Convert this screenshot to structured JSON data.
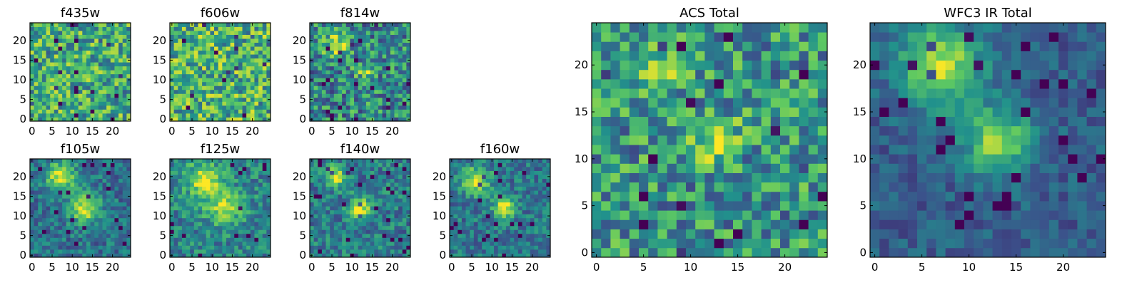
{
  "figure": {
    "panel_titles": [
      "f435w",
      "f606w",
      "f814w",
      "f105w",
      "f125w",
      "f140w",
      "f160w",
      "ACS Total",
      "WFC3 IR Total"
    ],
    "colormap": "viridis",
    "colormap_stops": [
      "#440154",
      "#3b528b",
      "#21918c",
      "#5ec962",
      "#fde725"
    ]
  },
  "chart_data": [
    {
      "type": "heatmap",
      "title": "f435w",
      "grid_size": 25,
      "xlim": [
        0,
        24
      ],
      "ylim": [
        0,
        24
      ],
      "xticks": [
        0,
        5,
        10,
        15,
        20
      ],
      "yticks": [
        0,
        5,
        10,
        15,
        20
      ],
      "sources": [],
      "noise": 0.3,
      "bias": 0.62
    },
    {
      "type": "heatmap",
      "title": "f606w",
      "grid_size": 25,
      "xlim": [
        0,
        24
      ],
      "ylim": [
        0,
        24
      ],
      "xticks": [
        0,
        5,
        10,
        15,
        20
      ],
      "yticks": [
        0,
        5,
        10,
        15,
        20
      ],
      "sources": [],
      "noise": 0.32,
      "bias": 0.64
    },
    {
      "type": "heatmap",
      "title": "f814w",
      "grid_size": 25,
      "xlim": [
        0,
        24
      ],
      "ylim": [
        0,
        24
      ],
      "xticks": [
        0,
        5,
        10,
        15,
        20
      ],
      "yticks": [
        0,
        5,
        10,
        15,
        20
      ],
      "sources": [
        [
          6,
          19,
          2.2,
          0.35
        ],
        [
          13,
          12,
          1.5,
          0.4
        ]
      ],
      "noise": 0.3,
      "bias": 0.48
    },
    {
      "type": "heatmap",
      "title": "f105w",
      "grid_size": 25,
      "xlim": [
        0,
        24
      ],
      "ylim": [
        0,
        24
      ],
      "xticks": [
        0,
        5,
        10,
        15,
        20
      ],
      "yticks": [
        0,
        5,
        10,
        15,
        20
      ],
      "sources": [
        [
          7,
          20,
          2.6,
          0.55
        ],
        [
          13,
          12,
          2.6,
          0.55
        ]
      ],
      "noise": 0.18,
      "bias": 0.38
    },
    {
      "type": "heatmap",
      "title": "f125w",
      "grid_size": 25,
      "xlim": [
        0,
        24
      ],
      "ylim": [
        0,
        24
      ],
      "xticks": [
        0,
        5,
        10,
        15,
        20
      ],
      "yticks": [
        0,
        5,
        10,
        15,
        20
      ],
      "sources": [
        [
          8,
          19,
          3.2,
          0.45
        ],
        [
          13,
          12,
          3.0,
          0.4
        ]
      ],
      "noise": 0.2,
      "bias": 0.45
    },
    {
      "type": "heatmap",
      "title": "f140w",
      "grid_size": 25,
      "xlim": [
        0,
        24
      ],
      "ylim": [
        0,
        24
      ],
      "xticks": [
        0,
        5,
        10,
        15,
        20
      ],
      "yticks": [
        0,
        5,
        10,
        15,
        20
      ],
      "sources": [
        [
          6,
          20,
          1.8,
          0.5
        ],
        [
          12,
          12,
          1.8,
          0.55
        ]
      ],
      "noise": 0.2,
      "bias": 0.42
    },
    {
      "type": "heatmap",
      "title": "f160w",
      "grid_size": 25,
      "xlim": [
        0,
        24
      ],
      "ylim": [
        0,
        24
      ],
      "xticks": [
        0,
        5,
        10,
        15,
        20
      ],
      "yticks": [
        0,
        5,
        10,
        15,
        20
      ],
      "sources": [
        [
          6,
          19,
          2.4,
          0.55
        ],
        [
          13,
          12,
          1.8,
          0.6
        ]
      ],
      "noise": 0.18,
      "bias": 0.4
    },
    {
      "type": "heatmap",
      "title": "ACS Total",
      "grid_size": 25,
      "xlim": [
        0,
        24
      ],
      "ylim": [
        0,
        24
      ],
      "xticks": [
        0,
        5,
        10,
        15,
        20
      ],
      "yticks": [
        0,
        5,
        10,
        15,
        20
      ],
      "sources": [
        [
          7,
          20,
          1.8,
          0.3
        ],
        [
          13,
          12,
          1.8,
          0.35
        ]
      ],
      "noise": 0.3,
      "bias": 0.52
    },
    {
      "type": "heatmap",
      "title": "WFC3 IR Total",
      "grid_size": 25,
      "xlim": [
        0,
        24
      ],
      "ylim": [
        0,
        24
      ],
      "xticks": [
        0,
        5,
        10,
        15,
        20
      ],
      "yticks": [
        0,
        5,
        10,
        15,
        20
      ],
      "sources": [
        [
          7,
          20,
          3.0,
          0.6
        ],
        [
          13,
          12,
          2.4,
          0.55
        ]
      ],
      "noise": 0.12,
      "bias": 0.3
    }
  ]
}
